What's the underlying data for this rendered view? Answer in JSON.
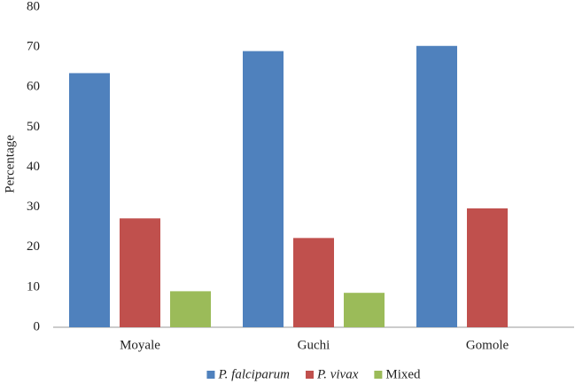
{
  "chart_data": {
    "type": "bar",
    "y_label": "Percentage",
    "categories": [
      "Moyale",
      "Guchi",
      "Gomole"
    ],
    "series": [
      {
        "name": "P. falciparum",
        "color": "#4f81bd",
        "italic": true,
        "values": [
          63.5,
          69,
          70.3
        ]
      },
      {
        "name": "P. vivax",
        "color": "#c0504d",
        "italic": true,
        "values": [
          27.2,
          22.3,
          29.7
        ]
      },
      {
        "name": "Mixed",
        "color": "#9bbb59",
        "italic": false,
        "values": [
          9,
          8.6,
          0
        ]
      }
    ],
    "ylim": [
      0,
      80
    ],
    "yticks": [
      0,
      10,
      20,
      30,
      40,
      50,
      60,
      70,
      80
    ],
    "grid": false,
    "legend": "bottom"
  }
}
